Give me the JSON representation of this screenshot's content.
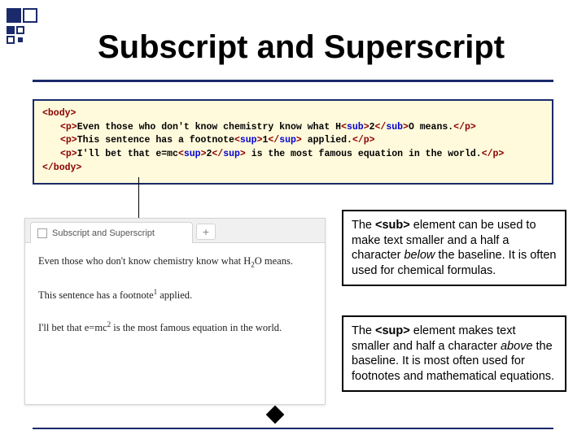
{
  "title": "Subscript and Superscript",
  "code": {
    "body_open": "<body>",
    "body_close": "</body>",
    "lines": [
      {
        "open": "<p>",
        "prefix": "Even those who don't know chemistry know what H",
        "tag_open": "<sub>",
        "mid": "2",
        "tag_close": "</sub>",
        "suffix": "O means.",
        "close": "</p>"
      },
      {
        "open": "<p>",
        "prefix": "This sentence has a footnote",
        "tag_open": "<sup>",
        "mid": "1",
        "tag_close": "</sup>",
        "suffix": " applied.",
        "close": "</p>"
      },
      {
        "open": "<p>",
        "prefix": "I'll bet that e=mc",
        "tag_open": "<sup>",
        "mid": "2",
        "tag_close": "</sup>",
        "suffix": " is the most famous equation in the world.",
        "close": "</p>"
      }
    ]
  },
  "browser": {
    "tab_title": "Subscript and Superscript",
    "plus": "+",
    "p1_a": "Even those who don't know chemistry know what H",
    "p1_sub": "2",
    "p1_b": "O means.",
    "p2_a": "This sentence has a footnote",
    "p2_sup": "1",
    "p2_b": " applied.",
    "p3_a": "I'll bet that e=mc",
    "p3_sup": "2",
    "p3_b": " is the most famous equation in the world."
  },
  "info1": {
    "a": "The ",
    "tag": "<sub>",
    "b": " element can be used to make text smaller and a half a character ",
    "ital": "below",
    "c": " the baseline.  It is often used for chemical formulas."
  },
  "info2": {
    "a": "The ",
    "tag": "<sup>",
    "b": " element makes text smaller and half a character ",
    "ital": "above",
    "c": " the baseline.  It is most often used for footnotes and mathematical equations."
  },
  "colors": {
    "accent": "#1b2a6b",
    "codebg": "#fffadc",
    "tag": "#8b0000",
    "attr": "#0000cd"
  }
}
